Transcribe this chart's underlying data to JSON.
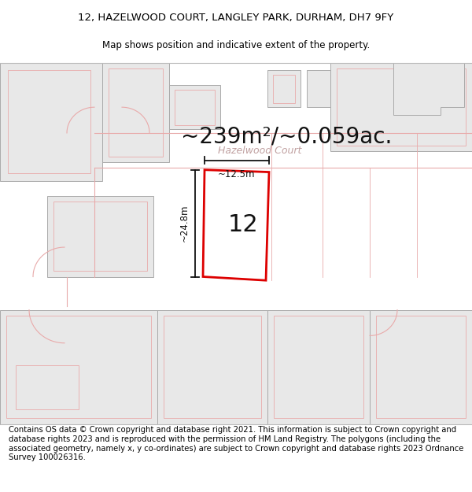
{
  "title_line1": "12, HAZELWOOD COURT, LANGLEY PARK, DURHAM, DH7 9FY",
  "title_line2": "Map shows position and indicative extent of the property.",
  "area_text": "~239m²/~0.059ac.",
  "plot_label": "12",
  "width_label": "~12.5m",
  "height_label": "~24.8m",
  "street_label": "Hazelwood Court",
  "footer_text": "Contains OS data © Crown copyright and database right 2021. This information is subject to Crown copyright and database rights 2023 and is reproduced with the permission of HM Land Registry. The polygons (including the associated geometry, namely x, y co-ordinates) are subject to Crown copyright and database rights 2023 Ordnance Survey 100026316.",
  "bg_color": "#ffffff",
  "map_bg": "#ffffff",
  "plot_fill": "#ffffff",
  "plot_edge": "#dd0000",
  "road_line_color": "#e8aaaa",
  "building_fill": "#e8e8e8",
  "building_edge": "#aaaaaa",
  "building_inner_edge": "#e8aaaa",
  "title_fontsize": 9.5,
  "subtitle_fontsize": 8.5,
  "area_fontsize": 20,
  "footer_fontsize": 7.2,
  "label_fontsize": 8.5,
  "plot_num_fontsize": 22
}
